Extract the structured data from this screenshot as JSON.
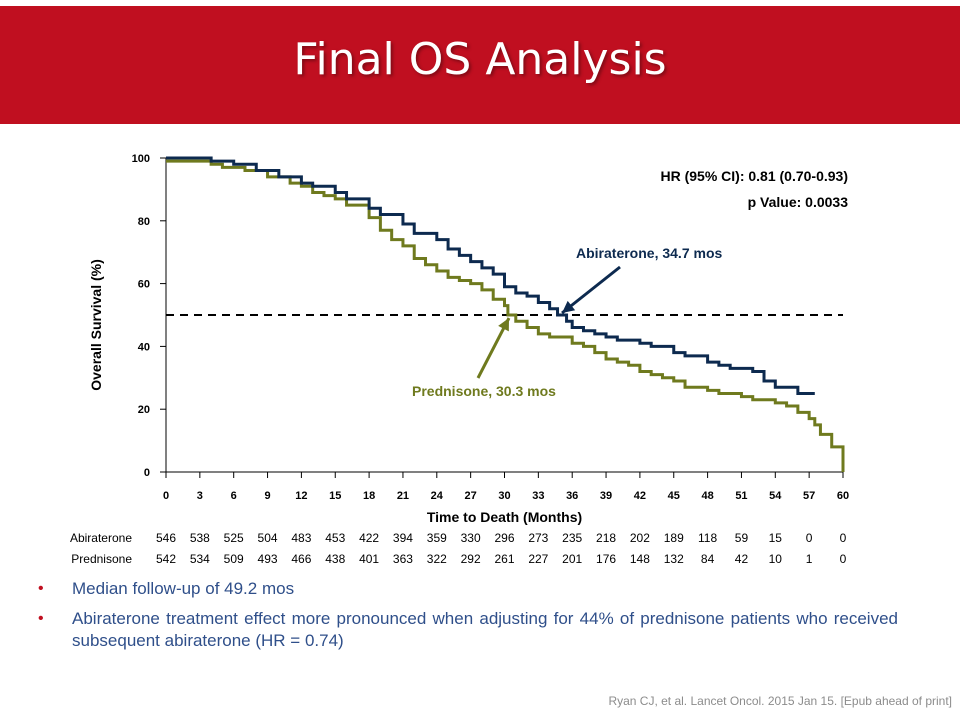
{
  "slide": {
    "title": "Final OS Analysis",
    "bullets": [
      "Median follow-up of 49.2 mos",
      "Abiraterone treatment effect more pronounced when adjusting for 44% of prednisone patients who received subsequent abiraterone (HR = 0.74)"
    ],
    "citation": "Ryan CJ, et al. Lancet Oncol. 2015 Jan 15. [Epub ahead of print]",
    "colors": {
      "title_bar": "#c00f20",
      "abiraterone": "#0d2a4f",
      "prednisone": "#6f7a1e",
      "bullet_text": "#2f4f8a"
    }
  },
  "chart_data": {
    "type": "line",
    "xlabel": "Time to Death (Months)",
    "ylabel": "Overall Survival (%)",
    "xlim": [
      0,
      60
    ],
    "ylim": [
      0,
      100
    ],
    "x_ticks": [
      0,
      3,
      6,
      9,
      12,
      15,
      18,
      21,
      24,
      27,
      30,
      33,
      36,
      39,
      42,
      45,
      48,
      51,
      54,
      57,
      60
    ],
    "y_ticks": [
      0,
      20,
      40,
      60,
      80,
      100
    ],
    "reference_line_y": 50,
    "annotations": {
      "hr": "HR (95% CI): 0.81 (0.70-0.93)",
      "p": "p Value: 0.0033",
      "abiraterone_label": "Abiraterone, 34.7 mos",
      "prednisone_label": "Prednisone, 30.3 mos"
    },
    "series": [
      {
        "name": "Abiraterone",
        "points": [
          [
            0,
            100
          ],
          [
            3,
            100
          ],
          [
            4,
            99
          ],
          [
            6,
            98
          ],
          [
            8,
            96
          ],
          [
            10,
            94
          ],
          [
            12,
            92
          ],
          [
            13,
            91
          ],
          [
            15,
            89
          ],
          [
            16,
            87
          ],
          [
            18,
            84
          ],
          [
            19,
            82
          ],
          [
            21,
            79
          ],
          [
            22,
            76
          ],
          [
            24,
            74
          ],
          [
            25,
            71
          ],
          [
            26,
            69
          ],
          [
            27,
            67
          ],
          [
            28,
            65
          ],
          [
            29,
            63
          ],
          [
            30,
            59
          ],
          [
            31,
            57
          ],
          [
            32,
            56
          ],
          [
            33,
            54
          ],
          [
            34,
            52
          ],
          [
            34.7,
            50
          ],
          [
            35.5,
            48
          ],
          [
            36,
            46
          ],
          [
            37,
            45
          ],
          [
            38,
            44
          ],
          [
            39,
            43
          ],
          [
            40,
            42
          ],
          [
            42,
            41
          ],
          [
            43,
            40
          ],
          [
            45,
            38
          ],
          [
            46,
            37
          ],
          [
            48,
            35
          ],
          [
            49,
            34
          ],
          [
            50,
            33
          ],
          [
            51,
            33
          ],
          [
            52,
            32
          ],
          [
            53,
            29
          ],
          [
            54,
            27
          ],
          [
            55,
            27
          ],
          [
            56,
            25
          ],
          [
            57,
            25
          ],
          [
            57.5,
            25
          ]
        ]
      },
      {
        "name": "Prednisone",
        "points": [
          [
            0,
            99
          ],
          [
            3,
            99
          ],
          [
            4,
            98
          ],
          [
            5,
            97
          ],
          [
            7,
            96
          ],
          [
            9,
            94
          ],
          [
            11,
            92
          ],
          [
            12,
            91
          ],
          [
            13,
            89
          ],
          [
            14,
            88
          ],
          [
            15,
            87
          ],
          [
            16,
            85
          ],
          [
            18,
            81
          ],
          [
            19,
            77
          ],
          [
            20,
            74
          ],
          [
            21,
            72
          ],
          [
            22,
            68
          ],
          [
            23,
            66
          ],
          [
            24,
            64
          ],
          [
            25,
            62
          ],
          [
            26,
            61
          ],
          [
            27,
            60
          ],
          [
            28,
            58
          ],
          [
            29,
            55
          ],
          [
            30,
            53
          ],
          [
            30.3,
            50
          ],
          [
            31,
            48
          ],
          [
            32,
            46
          ],
          [
            33,
            44
          ],
          [
            34,
            43
          ],
          [
            36,
            41
          ],
          [
            37,
            40
          ],
          [
            38,
            38
          ],
          [
            39,
            36
          ],
          [
            40,
            35
          ],
          [
            41,
            34
          ],
          [
            42,
            32
          ],
          [
            43,
            31
          ],
          [
            44,
            30
          ],
          [
            45,
            29
          ],
          [
            46,
            27
          ],
          [
            47,
            27
          ],
          [
            48,
            26
          ],
          [
            49,
            25
          ],
          [
            50,
            25
          ],
          [
            51,
            24
          ],
          [
            52,
            23
          ],
          [
            53,
            23
          ],
          [
            54,
            22
          ],
          [
            55,
            21
          ],
          [
            56,
            19
          ],
          [
            57,
            17
          ],
          [
            57.5,
            15
          ],
          [
            58,
            12
          ],
          [
            59,
            8
          ],
          [
            60,
            0
          ]
        ]
      }
    ],
    "at_risk": {
      "rows": [
        {
          "name": "Abiraterone",
          "values": [
            "546",
            "538",
            "525",
            "504",
            "483",
            "453",
            "422",
            "394",
            "359",
            "330",
            "296",
            "273",
            "235",
            "218",
            "202",
            "189",
            "118",
            "59",
            "15",
            "0",
            "0"
          ]
        },
        {
          "name": "Prednisone",
          "values": [
            "542",
            "534",
            "509",
            "493",
            "466",
            "438",
            "401",
            "363",
            "322",
            "292",
            "261",
            "227",
            "201",
            "176",
            "148",
            "132",
            "84",
            "42",
            "10",
            "1",
            "0"
          ]
        }
      ]
    }
  }
}
